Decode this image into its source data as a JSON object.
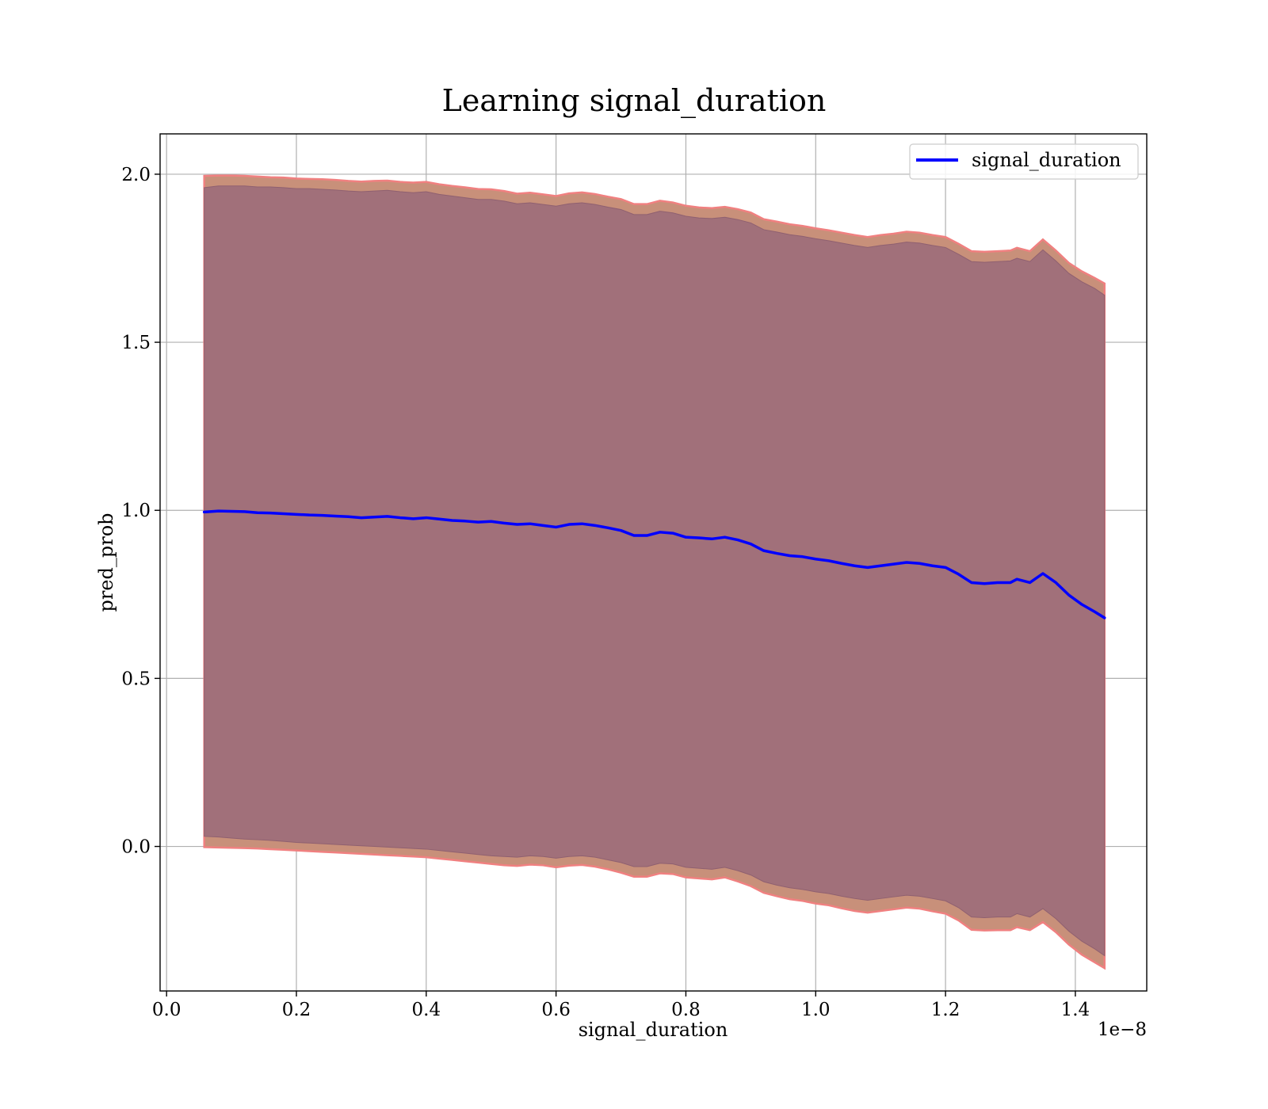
{
  "chart_data": {
    "type": "line",
    "title": "Learning signal_duration",
    "xlabel": "signal_duration",
    "ylabel": "pred_prob",
    "x_offset_text": "1e−8",
    "xlim": [
      -0.01,
      1.51
    ],
    "ylim": [
      -0.43,
      2.12
    ],
    "x_ticks": [
      0.0,
      0.2,
      0.4,
      0.6,
      0.8,
      1.0,
      1.2,
      1.4
    ],
    "x_tick_labels": [
      "0.0",
      "0.2",
      "0.4",
      "0.6",
      "0.8",
      "1.0",
      "1.2",
      "1.4"
    ],
    "y_ticks": [
      0.0,
      0.5,
      1.0,
      1.5,
      2.0
    ],
    "y_tick_labels": [
      "0.0",
      "0.5",
      "1.0",
      "1.5",
      "2.0"
    ],
    "grid": true,
    "legend": {
      "position": "top-right",
      "entries": [
        "signal_duration"
      ]
    },
    "colors": {
      "line": "#0000ff",
      "inner_band": "#a1707a",
      "outer_band": "#c8907a",
      "band_edge": "#f08080"
    },
    "series": [
      {
        "name": "signal_duration",
        "x": [
          0.058,
          0.08,
          0.1,
          0.12,
          0.14,
          0.16,
          0.18,
          0.2,
          0.22,
          0.24,
          0.26,
          0.28,
          0.3,
          0.32,
          0.34,
          0.36,
          0.38,
          0.4,
          0.42,
          0.44,
          0.46,
          0.48,
          0.5,
          0.52,
          0.54,
          0.56,
          0.58,
          0.6,
          0.62,
          0.64,
          0.66,
          0.68,
          0.7,
          0.72,
          0.74,
          0.76,
          0.78,
          0.8,
          0.82,
          0.84,
          0.86,
          0.88,
          0.9,
          0.92,
          0.94,
          0.96,
          0.98,
          1.0,
          1.02,
          1.04,
          1.06,
          1.08,
          1.1,
          1.12,
          1.14,
          1.16,
          1.18,
          1.2,
          1.22,
          1.24,
          1.26,
          1.28,
          1.3,
          1.31,
          1.33,
          1.35,
          1.37,
          1.39,
          1.41,
          1.43,
          1.445
        ],
        "y": [
          0.995,
          0.998,
          0.997,
          0.996,
          0.993,
          0.992,
          0.99,
          0.988,
          0.986,
          0.985,
          0.983,
          0.981,
          0.978,
          0.98,
          0.982,
          0.978,
          0.975,
          0.978,
          0.974,
          0.97,
          0.968,
          0.965,
          0.967,
          0.962,
          0.958,
          0.96,
          0.955,
          0.95,
          0.958,
          0.96,
          0.955,
          0.948,
          0.94,
          0.925,
          0.925,
          0.935,
          0.932,
          0.92,
          0.918,
          0.915,
          0.92,
          0.912,
          0.9,
          0.88,
          0.872,
          0.865,
          0.862,
          0.855,
          0.85,
          0.842,
          0.835,
          0.83,
          0.835,
          0.84,
          0.845,
          0.842,
          0.835,
          0.83,
          0.81,
          0.785,
          0.782,
          0.785,
          0.785,
          0.795,
          0.785,
          0.812,
          0.785,
          0.748,
          0.72,
          0.698,
          0.68
        ],
        "inner_lower": [
          0.03,
          0.028,
          0.025,
          0.022,
          0.02,
          0.018,
          0.015,
          0.012,
          0.01,
          0.008,
          0.006,
          0.004,
          0.002,
          0.0,
          -0.002,
          -0.004,
          -0.006,
          -0.008,
          -0.012,
          -0.016,
          -0.02,
          -0.024,
          -0.028,
          -0.03,
          -0.032,
          -0.028,
          -0.03,
          -0.035,
          -0.03,
          -0.028,
          -0.032,
          -0.04,
          -0.048,
          -0.06,
          -0.06,
          -0.05,
          -0.052,
          -0.062,
          -0.065,
          -0.068,
          -0.062,
          -0.072,
          -0.085,
          -0.105,
          -0.115,
          -0.123,
          -0.128,
          -0.135,
          -0.14,
          -0.148,
          -0.155,
          -0.16,
          -0.155,
          -0.15,
          -0.145,
          -0.148,
          -0.155,
          -0.162,
          -0.182,
          -0.21,
          -0.212,
          -0.21,
          -0.21,
          -0.2,
          -0.21,
          -0.185,
          -0.215,
          -0.252,
          -0.282,
          -0.305,
          -0.325
        ],
        "inner_upper": [
          1.96,
          1.965,
          1.965,
          1.965,
          1.962,
          1.962,
          1.96,
          1.957,
          1.957,
          1.955,
          1.953,
          1.95,
          1.948,
          1.95,
          1.952,
          1.948,
          1.945,
          1.948,
          1.94,
          1.935,
          1.93,
          1.925,
          1.925,
          1.92,
          1.912,
          1.915,
          1.91,
          1.905,
          1.912,
          1.915,
          1.91,
          1.902,
          1.895,
          1.88,
          1.88,
          1.89,
          1.885,
          1.875,
          1.87,
          1.868,
          1.872,
          1.865,
          1.855,
          1.835,
          1.828,
          1.82,
          1.815,
          1.808,
          1.802,
          1.795,
          1.788,
          1.782,
          1.788,
          1.792,
          1.798,
          1.795,
          1.788,
          1.782,
          1.762,
          1.74,
          1.738,
          1.74,
          1.742,
          1.75,
          1.74,
          1.775,
          1.742,
          1.705,
          1.68,
          1.66,
          1.64
        ],
        "outer_lower": [
          -0.002,
          -0.003,
          -0.004,
          -0.005,
          -0.006,
          -0.008,
          -0.01,
          -0.012,
          -0.014,
          -0.016,
          -0.018,
          -0.02,
          -0.022,
          -0.024,
          -0.026,
          -0.028,
          -0.03,
          -0.032,
          -0.036,
          -0.04,
          -0.044,
          -0.048,
          -0.052,
          -0.056,
          -0.058,
          -0.054,
          -0.056,
          -0.062,
          -0.057,
          -0.055,
          -0.06,
          -0.068,
          -0.078,
          -0.09,
          -0.09,
          -0.08,
          -0.082,
          -0.092,
          -0.095,
          -0.098,
          -0.092,
          -0.104,
          -0.118,
          -0.138,
          -0.148,
          -0.157,
          -0.162,
          -0.17,
          -0.175,
          -0.184,
          -0.192,
          -0.197,
          -0.192,
          -0.187,
          -0.182,
          -0.185,
          -0.193,
          -0.2,
          -0.22,
          -0.248,
          -0.25,
          -0.249,
          -0.249,
          -0.24,
          -0.249,
          -0.225,
          -0.255,
          -0.292,
          -0.322,
          -0.345,
          -0.362
        ],
        "outer_upper": [
          1.995,
          1.996,
          1.996,
          1.995,
          1.993,
          1.991,
          1.99,
          1.987,
          1.986,
          1.985,
          1.983,
          1.98,
          1.978,
          1.98,
          1.981,
          1.977,
          1.975,
          1.977,
          1.97,
          1.965,
          1.961,
          1.956,
          1.955,
          1.95,
          1.942,
          1.945,
          1.94,
          1.935,
          1.943,
          1.946,
          1.941,
          1.933,
          1.926,
          1.911,
          1.911,
          1.921,
          1.916,
          1.906,
          1.901,
          1.899,
          1.903,
          1.896,
          1.886,
          1.866,
          1.859,
          1.851,
          1.846,
          1.839,
          1.833,
          1.826,
          1.819,
          1.813,
          1.819,
          1.823,
          1.829,
          1.826,
          1.819,
          1.813,
          1.793,
          1.771,
          1.769,
          1.771,
          1.773,
          1.781,
          1.771,
          1.806,
          1.773,
          1.736,
          1.711,
          1.691,
          1.675
        ]
      }
    ]
  }
}
